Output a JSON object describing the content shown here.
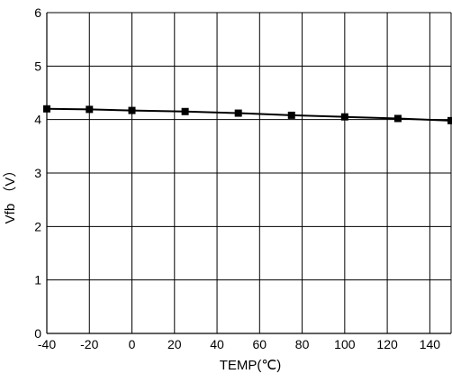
{
  "chart_data": {
    "type": "line",
    "title": "",
    "xlabel": "TEMP(℃)",
    "ylabel": "Vfb （V）",
    "xlim": [
      -40,
      150
    ],
    "ylim": [
      0,
      6
    ],
    "x_ticks": [
      -40,
      -20,
      0,
      20,
      40,
      60,
      80,
      100,
      120,
      140
    ],
    "y_ticks": [
      0,
      1,
      2,
      3,
      4,
      5,
      6
    ],
    "grid": true,
    "legend": "none",
    "series": [
      {
        "x": [
          -40,
          -20,
          0,
          25,
          50,
          75,
          100,
          125,
          150
        ],
        "y": [
          4.2,
          4.19,
          4.17,
          4.15,
          4.12,
          4.08,
          4.05,
          4.02,
          3.98
        ],
        "color": "#000000",
        "marker": "square"
      }
    ]
  }
}
